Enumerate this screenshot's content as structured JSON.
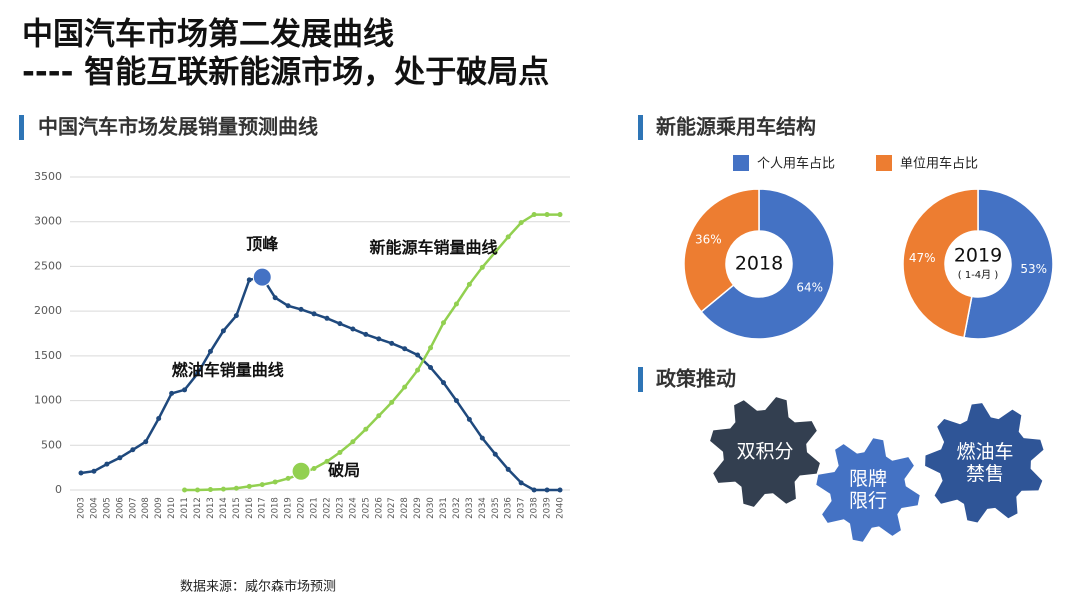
{
  "title": [
    "中国汽车市场第二发展曲线",
    "---- 智能互联新能源市场，处于破局点"
  ],
  "sections": [
    "中国汽车市场发展销量预测曲线",
    "新能源乘用车结构",
    "政策推动"
  ],
  "source": "数据来源：威尔森市场预测",
  "policy": [
    "双积分",
    "限牌\n限行",
    "燃油车\n禁售"
  ],
  "chart_data": [
    {
      "type": "line",
      "categories": [
        "2003",
        "2004",
        "2005",
        "2006",
        "2007",
        "2008",
        "2009",
        "2010",
        "2011",
        "2012",
        "2013",
        "2014",
        "2015",
        "2016",
        "2017",
        "2018",
        "2019",
        "2020",
        "2021",
        "2022",
        "2023",
        "2024",
        "2025",
        "2026",
        "2027",
        "2028",
        "2029",
        "2030",
        "2031",
        "2032",
        "2033",
        "2034",
        "2035",
        "2036",
        "2037",
        "2038",
        "2039",
        "2040"
      ],
      "series": [
        {
          "name": "燃油车销量曲线",
          "color": "#1f497d",
          "values": [
            190,
            210,
            290,
            360,
            450,
            540,
            800,
            1080,
            1120,
            1300,
            1550,
            1780,
            1950,
            2350,
            2380,
            2150,
            2060,
            2020,
            1970,
            1920,
            1860,
            1800,
            1740,
            1690,
            1640,
            1580,
            1510,
            1370,
            1200,
            1000,
            790,
            580,
            400,
            230,
            80,
            0,
            0,
            0
          ]
        },
        {
          "name": "新能源车销量曲线",
          "color": "#92d050",
          "values": [
            null,
            null,
            null,
            null,
            null,
            null,
            null,
            null,
            0,
            0,
            5,
            10,
            20,
            40,
            60,
            90,
            130,
            180,
            240,
            320,
            420,
            540,
            680,
            830,
            980,
            1150,
            1340,
            1590,
            1870,
            2080,
            2300,
            2490,
            2660,
            2830,
            2990,
            3080,
            3080,
            3080
          ]
        }
      ],
      "annotations": [
        {
          "text": "顶峰",
          "x": "2017",
          "y": 2380,
          "color": "#4472c4"
        },
        {
          "text": "破局",
          "x": "2020",
          "y": 210,
          "color": "#92d050"
        }
      ],
      "ylim": [
        0,
        3500
      ],
      "yticks": [
        0,
        500,
        1000,
        1500,
        2000,
        2500,
        3000,
        3500
      ],
      "grid": true
    },
    {
      "type": "pie",
      "center_label": "2018",
      "categories": [
        "个人用车占比",
        "单位用车占比"
      ],
      "colors": [
        "#4472c4",
        "#ed7d31"
      ],
      "values": [
        64,
        36
      ],
      "value_labels": [
        "64%",
        "36%"
      ]
    },
    {
      "type": "pie",
      "center_label": "2019",
      "center_sublabel": "( 1-4月 )",
      "categories": [
        "个人用车占比",
        "单位用车占比"
      ],
      "colors": [
        "#4472c4",
        "#ed7d31"
      ],
      "values": [
        53,
        47
      ],
      "value_labels": [
        "53%",
        "47%"
      ]
    }
  ]
}
